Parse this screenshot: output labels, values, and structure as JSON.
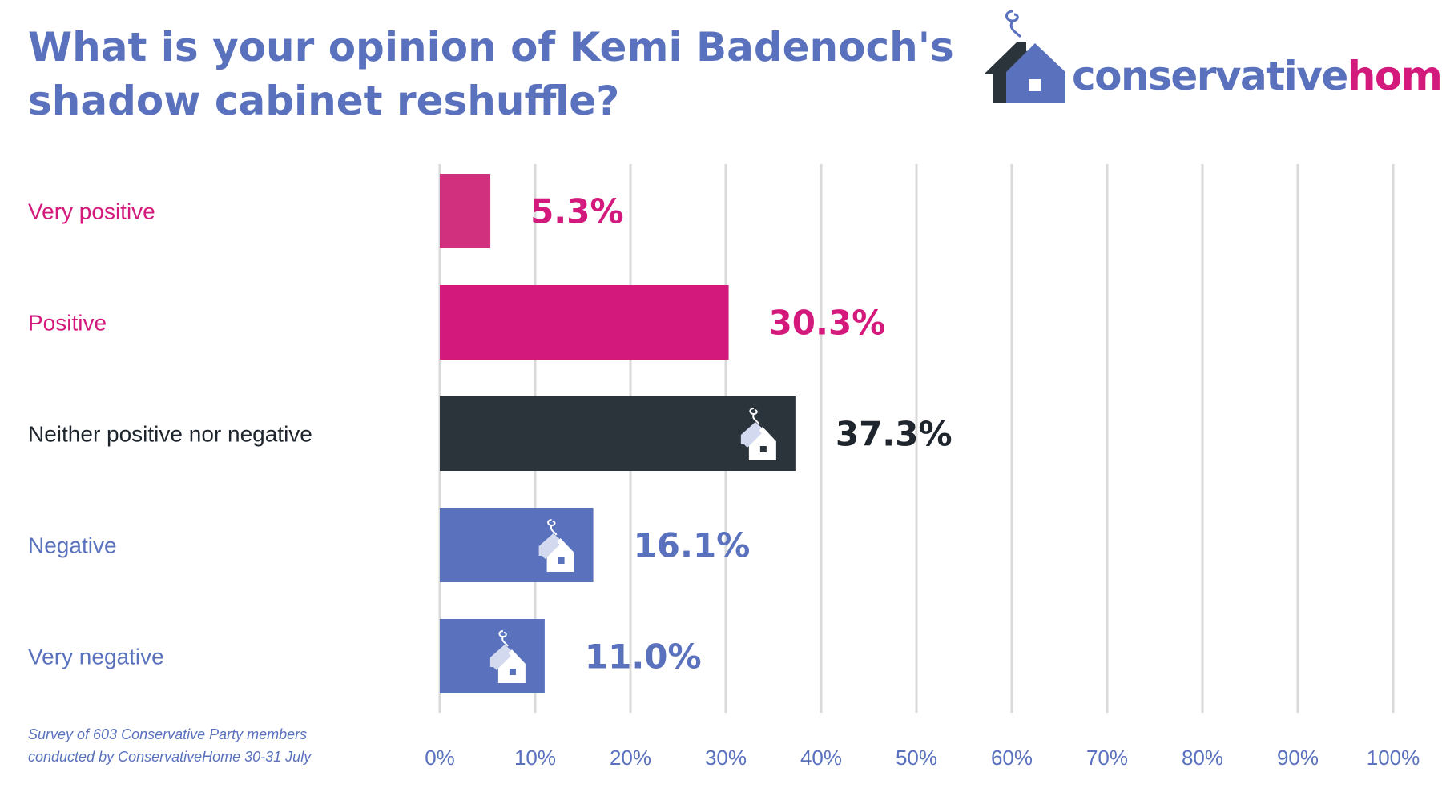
{
  "title": "What is your opinion of Kemi Badenoch's shadow cabinet reshuffle?",
  "logo": {
    "part1": "conservative",
    "part2": "home",
    "color1": "#5a72bd",
    "color2": "#d4197c",
    "icon": "house-smoke-icon"
  },
  "footnote": {
    "line1": "Survey of 603 Conservative Party members",
    "line2": "conducted by ConservativeHome 30-31 July"
  },
  "chart_data": {
    "type": "bar",
    "orientation": "horizontal",
    "categories": [
      "Very positive",
      "Positive",
      "Neither positive nor negative",
      "Negative",
      "Very negative"
    ],
    "values": [
      5.3,
      30.3,
      37.3,
      16.1,
      11.0
    ],
    "value_labels": [
      "5.3%",
      "30.3%",
      "37.3%",
      "16.1%",
      "11.0%"
    ],
    "bar_colors": [
      "#d1307f",
      "#d4197c",
      "#2b333b",
      "#5a72bd",
      "#5a72bd"
    ],
    "label_colors": [
      "#d4197c",
      "#d4197c",
      "#1e252c",
      "#5a72bd",
      "#5a72bd"
    ],
    "bar_icons": [
      false,
      false,
      true,
      true,
      true
    ],
    "xlim": [
      0,
      100
    ],
    "xticks": [
      0,
      10,
      20,
      30,
      40,
      50,
      60,
      70,
      80,
      90,
      100
    ],
    "xtick_labels": [
      "0%",
      "10%",
      "20%",
      "30%",
      "40%",
      "50%",
      "60%",
      "70%",
      "80%",
      "90%",
      "100%"
    ],
    "grid": true,
    "xlabel": "",
    "ylabel": ""
  }
}
